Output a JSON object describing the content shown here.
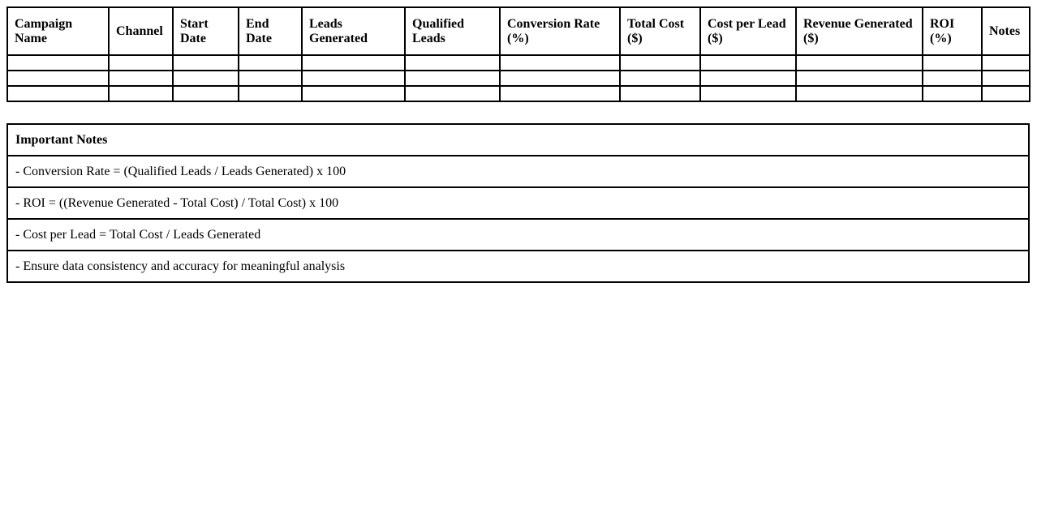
{
  "colors": {
    "background": "#ffffff",
    "border": "#000000",
    "text": "#000000"
  },
  "campaign_table": {
    "columns": [
      "Campaign Name",
      "Channel",
      "Start Date",
      "End Date",
      "Leads Generated",
      "Qualified Leads",
      "Conversion Rate (%)",
      "Total Cost ($)",
      "Cost per Lead ($)",
      "Revenue Generated ($)",
      "ROI (%)",
      "Notes"
    ],
    "empty_row_count": 3,
    "cell_values": []
  },
  "notes_table": {
    "title": "Important Notes",
    "items": [
      "- Conversion Rate = (Qualified Leads / Leads Generated) x 100",
      "- ROI = ((Revenue Generated - Total Cost) / Total Cost) x 100",
      "- Cost per Lead = Total Cost / Leads Generated",
      "- Ensure data consistency and accuracy for meaningful analysis"
    ]
  }
}
